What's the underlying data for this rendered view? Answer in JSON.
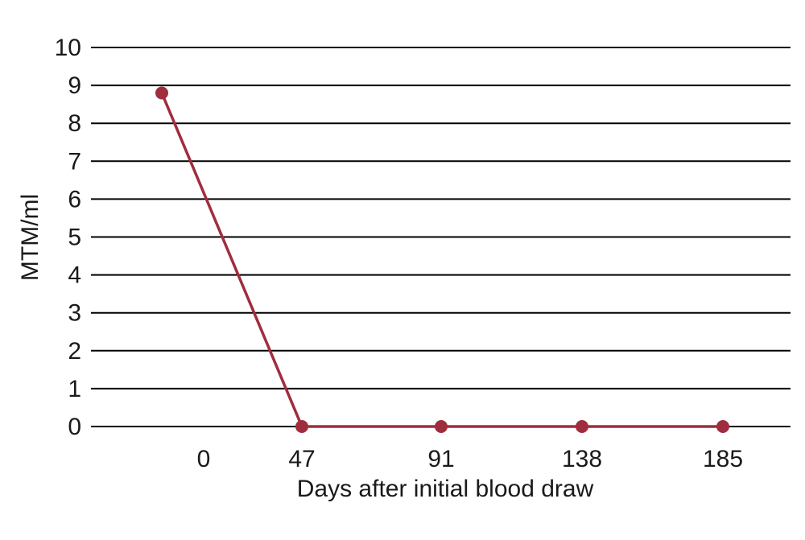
{
  "chart_data": {
    "type": "line",
    "title": "",
    "xlabel": "Days after initial blood draw",
    "ylabel": "MTM/ml",
    "categories": [
      "",
      "0",
      "47",
      "91",
      "138",
      "185"
    ],
    "series": [
      {
        "values": [
          8.8,
          null,
          0,
          0,
          0,
          0
        ]
      }
    ],
    "yticks": [
      "0",
      "1",
      "2",
      "3",
      "4",
      "5",
      "6",
      "7",
      "8",
      "9",
      "10"
    ],
    "ylim": [
      0,
      10
    ],
    "grid": true,
    "legend": "none",
    "colors": {
      "line": "#a02d3e",
      "grid": "#000000"
    }
  }
}
